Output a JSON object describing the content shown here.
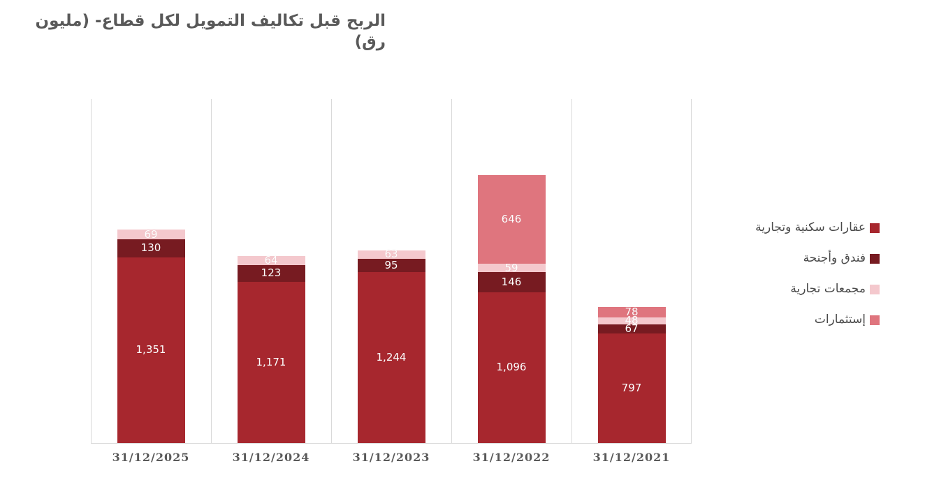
{
  "chart_data": {
    "type": "bar",
    "stacked": true,
    "title": "الربح قبل تكاليف التمويل لكل قطاع- (مليون رق)",
    "categories": [
      "31/12/2025",
      "31/12/2024",
      "31/12/2023",
      "31/12/2022",
      "31/12/2021"
    ],
    "series": [
      {
        "name": "عقارات سكنية وتجارية",
        "color": "#A7272E",
        "values": [
          1351,
          1171,
          1244,
          1096,
          797
        ]
      },
      {
        "name": "فندق وأجنحة",
        "color": "#771B21",
        "values": [
          130,
          123,
          95,
          146,
          67
        ]
      },
      {
        "name": "مجمعات تجارية",
        "color": "#F4C8CD",
        "values": [
          69,
          64,
          63,
          59,
          48
        ]
      },
      {
        "name": "إستثمارات",
        "color": "#DF757E",
        "values": [
          0,
          0,
          0,
          646,
          78
        ]
      }
    ],
    "ylim": [
      0,
      2500
    ],
    "grid": "vertical-category-separators",
    "gridline_color": "#d9d9d9",
    "legend_position": "right",
    "value_label_color": "#ffffff",
    "axis_label_color": "#595959"
  }
}
